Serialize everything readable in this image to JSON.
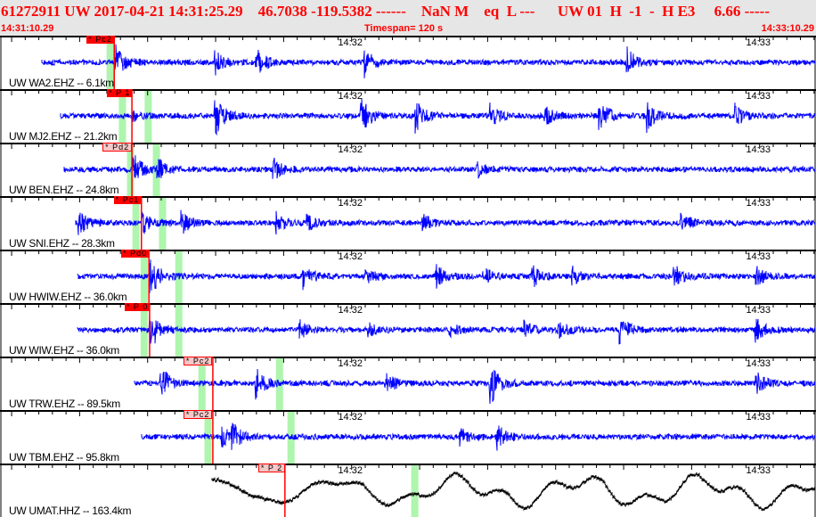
{
  "header": {
    "title": "61272911 UW 2017-04-21 14:31:25.29    46.7038 -119.5382 ------    NaN M    eq  L ---      UW 01  H  -1  -  H E3     6.66 -----",
    "start_time": "14:31:10.29",
    "timespan": "Timespan= 120 s",
    "end_time": "14:33:10.29"
  },
  "axis": {
    "minute_labels": [
      "14:32",
      "14:33"
    ],
    "minute_offsets_s": [
      49.71,
      109.71
    ],
    "timespan_s": 120
  },
  "colors": {
    "trace": "#0000ff",
    "broadband_trace": "#000000",
    "pick": "#ff0000",
    "pick_light": "#f5c8c8",
    "phase_window": "#aef5ae",
    "header_bg": "#e6e6e6"
  },
  "stations": [
    {
      "label": "UW WA2.EHZ -- 6.1km",
      "pick": "* Pc2",
      "pick_style": "solid",
      "pick_s": 16.8,
      "data_start_s": 6.2,
      "windows_s": [
        16.2
      ]
    },
    {
      "label": "UW MJ2.EHZ -- 21.2km",
      "pick": "* P 1",
      "pick_style": "solid",
      "pick_s": 19.4,
      "data_start_s": 8.9,
      "windows_s": [
        18.0,
        21.8
      ]
    },
    {
      "label": "UW BEN.EHZ -- 24.8km",
      "pick": "* Pd2",
      "pick_style": "light",
      "pick_s": 19.4,
      "data_start_s": 9.4,
      "windows_s": [
        19.2,
        23.0
      ]
    },
    {
      "label": "UW SNI.EHZ -- 28.3km",
      "pick": "* Pc1",
      "pick_style": "solid",
      "pick_s": 20.8,
      "data_start_s": 11.1,
      "windows_s": [
        20.0,
        23.9
      ]
    },
    {
      "label": "UW HWIW.EHZ -- 36.0km",
      "pick": "* Pd0",
      "pick_style": "solid",
      "pick_s": 21.9,
      "data_start_s": 11.4,
      "windows_s": [
        21.2,
        26.3
      ]
    },
    {
      "label": "UW WIW.EHZ -- 36.0km",
      "pick": "* P 0",
      "pick_style": "solid",
      "pick_s": 22.0,
      "data_start_s": 11.4,
      "windows_s": [
        21.2,
        26.3
      ]
    },
    {
      "label": "UW TRW.EHZ -- 89.5km",
      "pick": "* Pc2",
      "pick_style": "light",
      "pick_s": 31.3,
      "data_start_s": 19.8,
      "windows_s": [
        29.7,
        41.1
      ]
    },
    {
      "label": "UW TBM.EHZ -- 95.8km",
      "pick": "* Pc2",
      "pick_style": "light",
      "pick_s": 31.3,
      "data_start_s": 20.8,
      "windows_s": [
        30.6,
        42.8
      ]
    },
    {
      "label": "UW UMAT.HHZ -- 163.4km",
      "pick": "* P 2",
      "pick_style": "light",
      "pick_s": 41.9,
      "data_start_s": 31.2,
      "windows_s": [
        61.0
      ]
    }
  ]
}
